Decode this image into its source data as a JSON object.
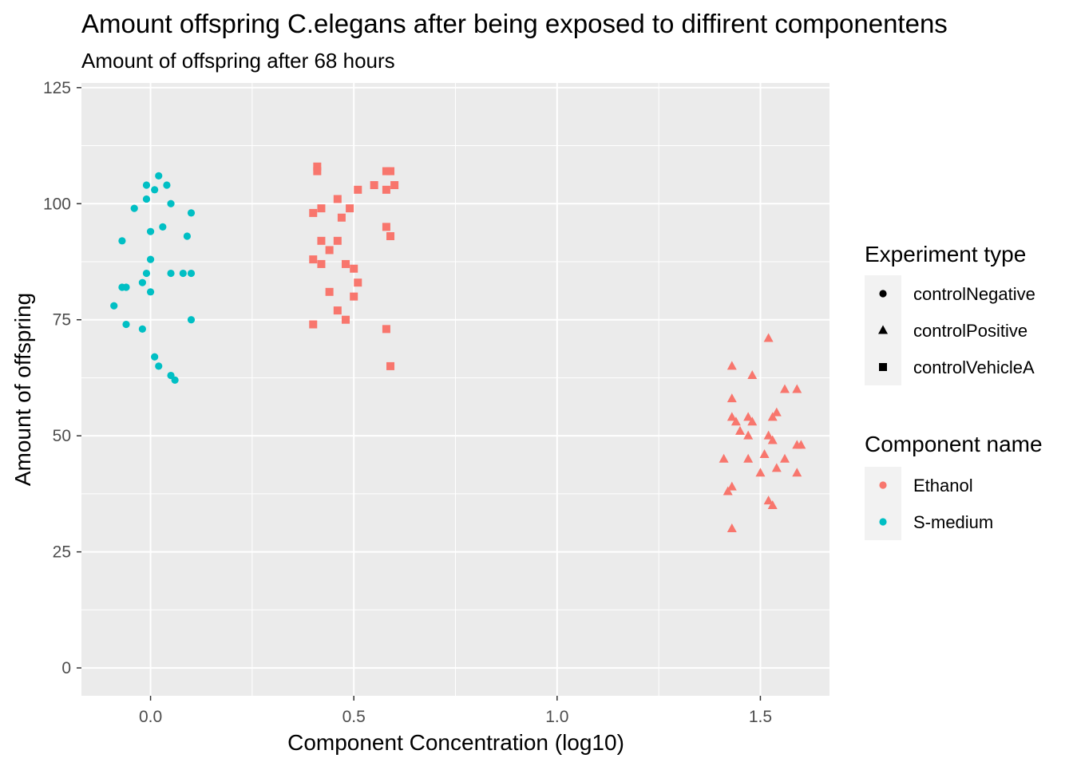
{
  "chart_data": {
    "type": "scatter",
    "title": "Amount offspring C.elegans after being exposed to diffirent componentens",
    "subtitle": "Amount of offspring after 68 hours",
    "xlabel": "Component Concentration (log10)",
    "ylabel": "Amount of offspring",
    "xlim": [
      -0.17,
      1.67
    ],
    "ylim": [
      -6,
      126
    ],
    "x_ticks": [
      {
        "value": 0.0,
        "label": "0.0"
      },
      {
        "value": 0.5,
        "label": "0.5"
      },
      {
        "value": 1.0,
        "label": "1.0"
      },
      {
        "value": 1.5,
        "label": "1.5"
      }
    ],
    "y_ticks": [
      {
        "value": 0,
        "label": "0"
      },
      {
        "value": 25,
        "label": "25"
      },
      {
        "value": 50,
        "label": "50"
      },
      {
        "value": 75,
        "label": "75"
      },
      {
        "value": 100,
        "label": "100"
      },
      {
        "value": 125,
        "label": "125"
      }
    ],
    "grid": true,
    "background": "#EBEBEB",
    "legend_position": "right",
    "legends": [
      {
        "title": "Experiment type",
        "entries": [
          {
            "label": "controlNegative",
            "shape": "circle"
          },
          {
            "label": "controlPositive",
            "shape": "triangle"
          },
          {
            "label": "controlVehicleA",
            "shape": "square"
          }
        ]
      },
      {
        "title": "Component name",
        "entries": [
          {
            "label": "Ethanol",
            "color": "#F8766D"
          },
          {
            "label": "S-medium",
            "color": "#00BFC4"
          }
        ]
      }
    ],
    "series": [
      {
        "component": "S-medium",
        "experiment_type": "controlNegative",
        "shape": "circle",
        "color": "#00BFC4",
        "points": [
          [
            -0.01,
            104
          ],
          [
            -0.01,
            101
          ],
          [
            0.02,
            106
          ],
          [
            0.04,
            104
          ],
          [
            0.01,
            103
          ],
          [
            -0.04,
            99
          ],
          [
            0.05,
            100
          ],
          [
            0.1,
            98
          ],
          [
            0.03,
            95
          ],
          [
            0.0,
            94
          ],
          [
            0.09,
            93
          ],
          [
            -0.07,
            92
          ],
          [
            0.0,
            88
          ],
          [
            0.05,
            85
          ],
          [
            0.08,
            85
          ],
          [
            0.1,
            85
          ],
          [
            -0.01,
            85
          ],
          [
            -0.02,
            83
          ],
          [
            -0.06,
            82
          ],
          [
            -0.07,
            82
          ],
          [
            0.0,
            81
          ],
          [
            -0.09,
            78
          ],
          [
            0.1,
            75
          ],
          [
            -0.06,
            74
          ],
          [
            -0.02,
            73
          ],
          [
            0.01,
            67
          ],
          [
            0.02,
            65
          ],
          [
            0.05,
            63
          ],
          [
            0.06,
            62
          ]
        ]
      },
      {
        "component": "Ethanol",
        "experiment_type": "controlVehicleA",
        "shape": "square",
        "color": "#F8766D",
        "points": [
          [
            0.41,
            108
          ],
          [
            0.41,
            107
          ],
          [
            0.59,
            107
          ],
          [
            0.58,
            107
          ],
          [
            0.6,
            104
          ],
          [
            0.55,
            104
          ],
          [
            0.58,
            103
          ],
          [
            0.51,
            103
          ],
          [
            0.46,
            101
          ],
          [
            0.42,
            99
          ],
          [
            0.49,
            99
          ],
          [
            0.4,
            98
          ],
          [
            0.47,
            97
          ],
          [
            0.58,
            95
          ],
          [
            0.59,
            93
          ],
          [
            0.42,
            92
          ],
          [
            0.46,
            92
          ],
          [
            0.44,
            90
          ],
          [
            0.4,
            88
          ],
          [
            0.42,
            87
          ],
          [
            0.48,
            87
          ],
          [
            0.5,
            86
          ],
          [
            0.51,
            83
          ],
          [
            0.44,
            81
          ],
          [
            0.5,
            80
          ],
          [
            0.46,
            77
          ],
          [
            0.48,
            75
          ],
          [
            0.4,
            74
          ],
          [
            0.58,
            73
          ],
          [
            0.59,
            65
          ]
        ]
      },
      {
        "component": "Ethanol",
        "experiment_type": "controlPositive",
        "shape": "triangle",
        "color": "#F8766D",
        "points": [
          [
            1.52,
            71
          ],
          [
            1.43,
            65
          ],
          [
            1.48,
            63
          ],
          [
            1.56,
            60
          ],
          [
            1.59,
            60
          ],
          [
            1.43,
            58
          ],
          [
            1.54,
            55
          ],
          [
            1.43,
            54
          ],
          [
            1.47,
            54
          ],
          [
            1.53,
            54
          ],
          [
            1.44,
            53
          ],
          [
            1.48,
            53
          ],
          [
            1.45,
            51
          ],
          [
            1.47,
            50
          ],
          [
            1.52,
            50
          ],
          [
            1.53,
            49
          ],
          [
            1.59,
            48
          ],
          [
            1.6,
            48
          ],
          [
            1.51,
            46
          ],
          [
            1.41,
            45
          ],
          [
            1.47,
            45
          ],
          [
            1.56,
            45
          ],
          [
            1.54,
            43
          ],
          [
            1.5,
            42
          ],
          [
            1.59,
            42
          ],
          [
            1.43,
            39
          ],
          [
            1.42,
            38
          ],
          [
            1.52,
            36
          ],
          [
            1.53,
            35
          ],
          [
            1.43,
            30
          ]
        ]
      }
    ]
  }
}
